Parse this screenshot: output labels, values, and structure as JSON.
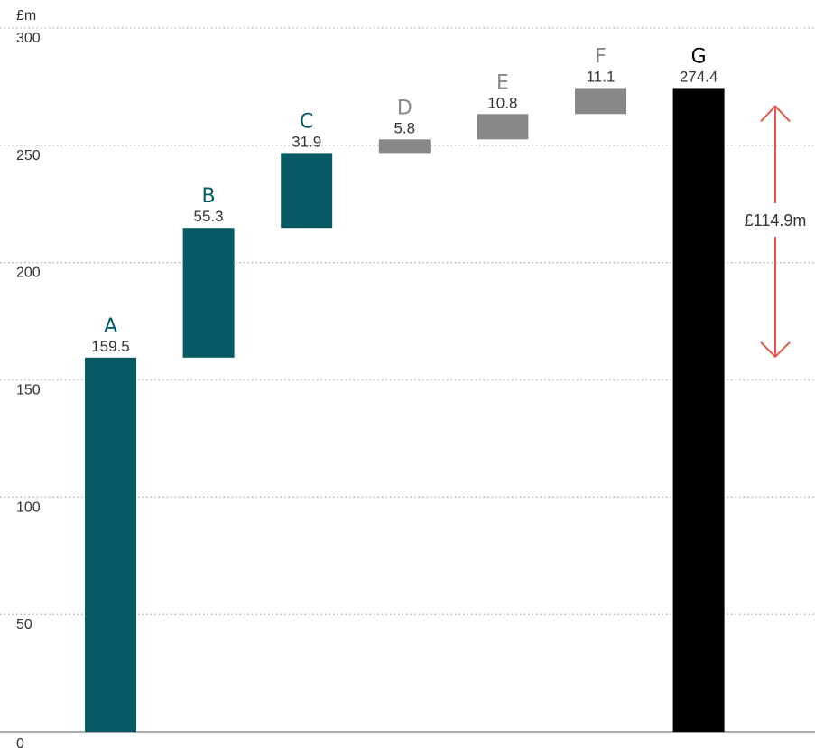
{
  "chart_data": {
    "type": "bar",
    "waterfall": true,
    "unit": "£m",
    "ylim": [
      0,
      300
    ],
    "yticks": [
      0,
      50,
      100,
      150,
      200,
      250,
      300
    ],
    "grid": true,
    "bars": [
      {
        "category": "A",
        "value": 159.5,
        "base": 0,
        "color": "#065a63",
        "label_color": "#065a63"
      },
      {
        "category": "B",
        "value": 55.3,
        "base": 159.5,
        "color": "#065a63",
        "label_color": "#065a63"
      },
      {
        "category": "C",
        "value": 31.9,
        "base": 214.8,
        "color": "#065a63",
        "label_color": "#065a63"
      },
      {
        "category": "D",
        "value": 5.8,
        "base": 246.7,
        "color": "#888888",
        "label_color": "#888888"
      },
      {
        "category": "E",
        "value": 10.8,
        "base": 252.5,
        "color": "#888888",
        "label_color": "#888888"
      },
      {
        "category": "F",
        "value": 11.1,
        "base": 263.3,
        "color": "#888888",
        "label_color": "#888888"
      },
      {
        "category": "G",
        "value": 274.4,
        "base": 0,
        "color": "#000000",
        "label_color": "#000000"
      }
    ],
    "annotation": {
      "label": "£114.9m",
      "from": 159.5,
      "to": 274.4,
      "color": "#e0584a"
    }
  }
}
